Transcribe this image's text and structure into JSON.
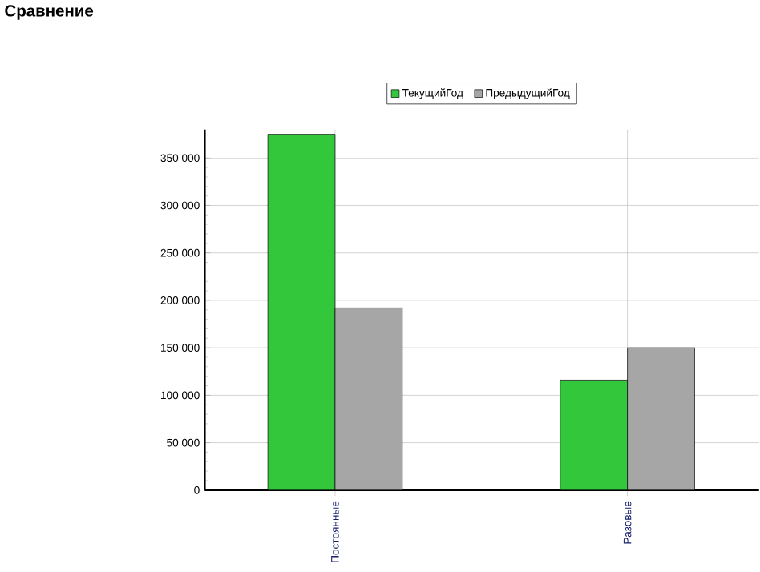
{
  "chart_data": {
    "type": "bar",
    "title": "Сравнение",
    "categories": [
      "Постоянные",
      "Разовые"
    ],
    "series": [
      {
        "name": "ТекущийГод",
        "color": "#33c83c",
        "values": [
          375000,
          116000
        ]
      },
      {
        "name": "ПредыдущийГод",
        "color": "#a6a6a6",
        "values": [
          192000,
          150000
        ]
      }
    ],
    "ylim": [
      0,
      380000
    ],
    "yticks": [
      0,
      {
        "value": 50000,
        "label": "50 000"
      },
      {
        "value": 100000,
        "label": "100 000"
      },
      {
        "value": 150000,
        "label": "150 000"
      },
      {
        "value": 200000,
        "label": "200 000"
      },
      {
        "value": 250000,
        "label": "250 000"
      },
      {
        "value": 300000,
        "label": "300 000"
      },
      {
        "value": 350000,
        "label": "350 000"
      }
    ],
    "grid": true,
    "legend": "top"
  }
}
